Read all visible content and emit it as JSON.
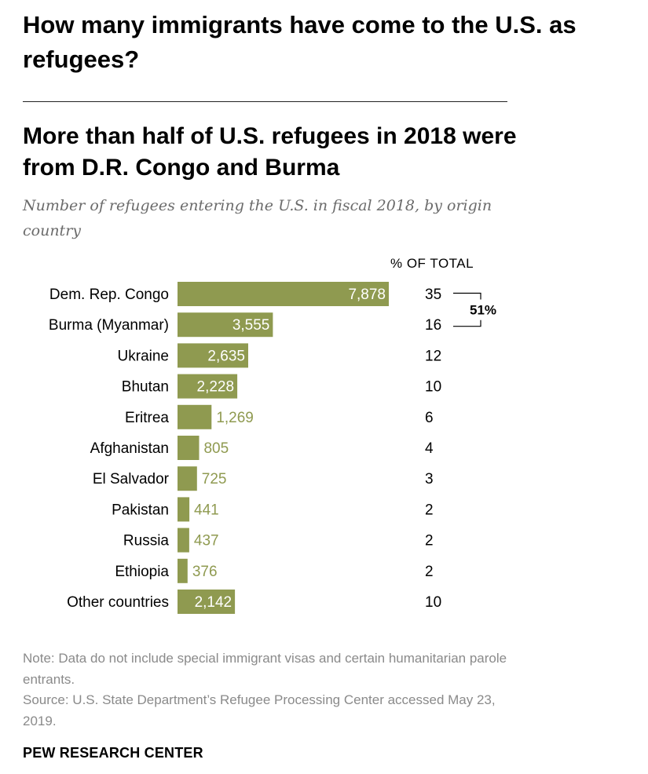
{
  "page": {
    "heading": "How many immigrants have come to the U.S. as refugees?"
  },
  "chart": {
    "title": "More than half of U.S. refugees in 2018 were from D.R. Congo and Burma",
    "subtitle": "Number of refugees entering the U.S. in fiscal 2018, by origin country",
    "pct_header": "% OF TOTAL",
    "bracket_label": "51%",
    "note": "Note: Data do not include special immigrant visas and certain humanitarian parole entrants.",
    "source": "Source: U.S. State Department’s Refugee Processing Center accessed May 23, 2019.",
    "brand": "PEW RESEARCH CENTER"
  },
  "colors": {
    "bar": "#8f9a50",
    "label_inside": "#ffffff",
    "label_outside": "#8f9a50",
    "text": "#000000",
    "muted": "#8a8a8a"
  },
  "chart_data": {
    "type": "bar",
    "orientation": "horizontal",
    "title": "More than half of U.S. refugees in 2018 were from D.R. Congo and Burma",
    "subtitle": "Number of refugees entering the U.S. in fiscal 2018, by origin country",
    "xlabel": "",
    "ylabel": "",
    "xlim": [
      0,
      7878
    ],
    "grid": false,
    "categories": [
      "Dem. Rep. Congo",
      "Burma (Myanmar)",
      "Ukraine",
      "Bhutan",
      "Eritrea",
      "Afghanistan",
      "El Salvador",
      "Pakistan",
      "Russia",
      "Ethiopia",
      "Other countries"
    ],
    "values": [
      7878,
      3555,
      2635,
      2228,
      1269,
      805,
      725,
      441,
      437,
      376,
      2142
    ],
    "value_labels": [
      "7,878",
      "3,555",
      "2,635",
      "2,228",
      "1,269",
      "805",
      "725",
      "441",
      "437",
      "376",
      "2,142"
    ],
    "pct_of_total": [
      35,
      16,
      12,
      10,
      6,
      4,
      3,
      2,
      2,
      2,
      10
    ],
    "pct_header": "% OF TOTAL",
    "annotations": [
      {
        "text": "51%",
        "spans": [
          "Dem. Rep. Congo",
          "Burma (Myanmar)"
        ]
      }
    ]
  }
}
